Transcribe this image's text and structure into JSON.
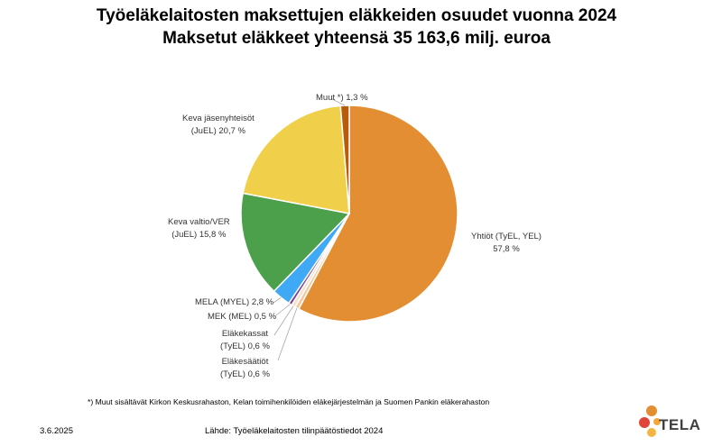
{
  "chart_data": {
    "type": "pie",
    "title": "Työeläkelaitosten maksettujen eläkkeiden osuudet vuonna 2024",
    "subtitle": "Maksetut eläkkeet yhteensä 35 163,6 milj. euroa",
    "slices": [
      {
        "line1": "Yhtiöt (TyEL, YEL)",
        "line2": "57,8 %",
        "value": 57.8,
        "color": "#E38E32"
      },
      {
        "line1": "Eläkesäätiöt",
        "line2": "(TyEL) 0,6 %",
        "value": 0.6,
        "color": "#F2C9A0"
      },
      {
        "line1": "Eläkekassat",
        "line2": "(TyEL) 0,6 %",
        "value": 0.6,
        "color": "#F7E0C8"
      },
      {
        "line1": "MEK (MEL) 0,5 %",
        "line2": "",
        "value": 0.5,
        "color": "#7A3F98"
      },
      {
        "line1": "MELA (MYEL) 2,8 %",
        "line2": "",
        "value": 2.8,
        "color": "#3FA9F5"
      },
      {
        "line1": "Keva valtio/VER",
        "line2": "(JuEL) 15,8 %",
        "value": 15.8,
        "color": "#4CA04C"
      },
      {
        "line1": "Keva jäsenyhteisöt",
        "line2": "(JuEL) 20,7 %",
        "value": 20.7,
        "color": "#F0D04A"
      },
      {
        "line1": "Muut *) 1,3 %",
        "line2": "",
        "value": 1.3,
        "color": "#B85C0A"
      }
    ]
  },
  "footnote": "*) Muut sisältävät  Kirkon Keskusrahaston, Kelan toimihenkilöiden eläkejärjestelmän ja Suomen Pankin eläkerahaston",
  "date": "3.6.2025",
  "source": "Lähde: Työeläkelaitosten tilinpäätöstiedot 2024",
  "logo": {
    "text": "TELA",
    "icon": "tela-logo-icon"
  }
}
